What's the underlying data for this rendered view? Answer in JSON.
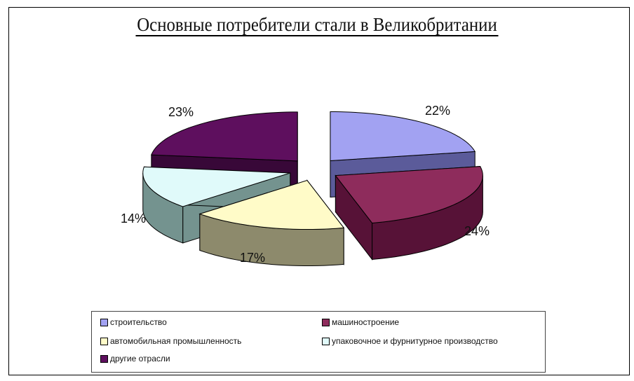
{
  "chart_data": {
    "type": "pie",
    "title": "Основные потребители стали в Великобритании",
    "slices": [
      {
        "label": "строительство",
        "value": 22,
        "display": "22%",
        "color": "#a2a2f2",
        "side": "#5b5b9a"
      },
      {
        "label": "машиностроение",
        "value": 24,
        "display": "24%",
        "color": "#8e2c5c",
        "side": "#571237"
      },
      {
        "label": "автомобильная промышленность",
        "value": 17,
        "display": "17%",
        "color": "#fffbc8",
        "side": "#8d8a6c"
      },
      {
        "label": "упаковочное и фурнитурное производство",
        "value": 14,
        "display": "14%",
        "color": "#e0fafa",
        "side": "#74938f"
      },
      {
        "label": "другие отрасли",
        "value": 23,
        "display": "23%",
        "color": "#5e0f5e",
        "side": "#380838"
      }
    ],
    "legend_position": "bottom",
    "exploded": true,
    "style_3d": true
  }
}
